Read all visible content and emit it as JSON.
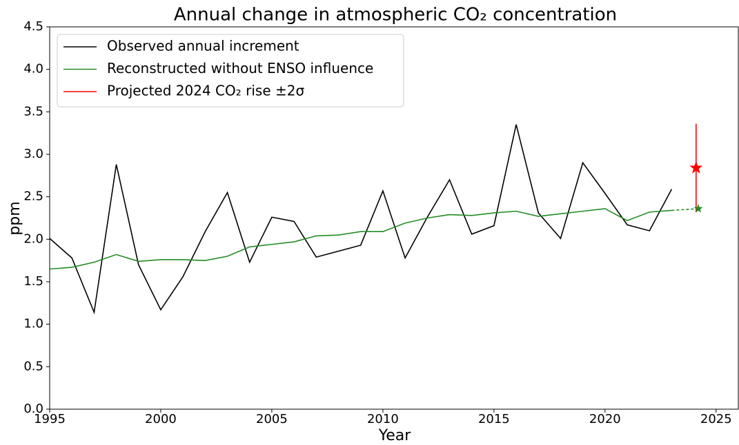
{
  "chart_data": {
    "type": "line",
    "title": "Annual change in atmospheric CO₂ concentration",
    "xlabel": "Year",
    "ylabel": "ppm",
    "x": [
      1995,
      1996,
      1997,
      1998,
      1999,
      2000,
      2001,
      2002,
      2003,
      2004,
      2005,
      2006,
      2007,
      2008,
      2009,
      2010,
      2011,
      2012,
      2013,
      2014,
      2015,
      2016,
      2017,
      2018,
      2019,
      2020,
      2021,
      2022,
      2023
    ],
    "series": [
      {
        "name": "Observed annual increment",
        "color": "#000000",
        "values": [
          2.01,
          1.78,
          1.14,
          2.88,
          1.7,
          1.17,
          1.56,
          2.09,
          2.55,
          1.73,
          2.26,
          2.21,
          1.79,
          1.86,
          1.93,
          2.57,
          1.78,
          2.26,
          2.7,
          2.06,
          2.16,
          3.35,
          2.31,
          2.01,
          2.9,
          2.54,
          2.17,
          2.1,
          2.59
        ]
      },
      {
        "name": "Reconstructed without ENSO influence",
        "color": "#228b22",
        "values": [
          1.65,
          1.67,
          1.73,
          1.82,
          1.74,
          1.76,
          1.76,
          1.75,
          1.8,
          1.91,
          1.94,
          1.97,
          2.04,
          2.05,
          2.09,
          2.09,
          2.19,
          2.25,
          2.29,
          2.28,
          2.31,
          2.33,
          2.27,
          2.3,
          2.33,
          2.36,
          2.22,
          2.32,
          2.34
        ]
      }
    ],
    "projection": {
      "name": "Projected 2024 CO₂ rise ±2σ",
      "color": "#ff0000",
      "x": 2024.1,
      "value": 2.84,
      "error": 0.52
    },
    "reconstructed_projection": {
      "color": "#228b22",
      "x": 2024.2,
      "value": 2.36
    },
    "xlim": [
      1995,
      2026
    ],
    "xticks": [
      1995,
      2000,
      2005,
      2010,
      2015,
      2020,
      2025
    ],
    "ylim": [
      0,
      4.5
    ],
    "yticks": [
      {
        "value": 0,
        "label": "0.0"
      },
      0.5,
      {
        "value": 1,
        "label": "1.0"
      },
      1.5,
      {
        "value": 2,
        "label": "2.0"
      },
      2.5,
      {
        "value": 3,
        "label": "3.0"
      },
      3.5,
      {
        "value": 4,
        "label": "4.0"
      },
      4.5
    ],
    "legend": "upper left"
  }
}
